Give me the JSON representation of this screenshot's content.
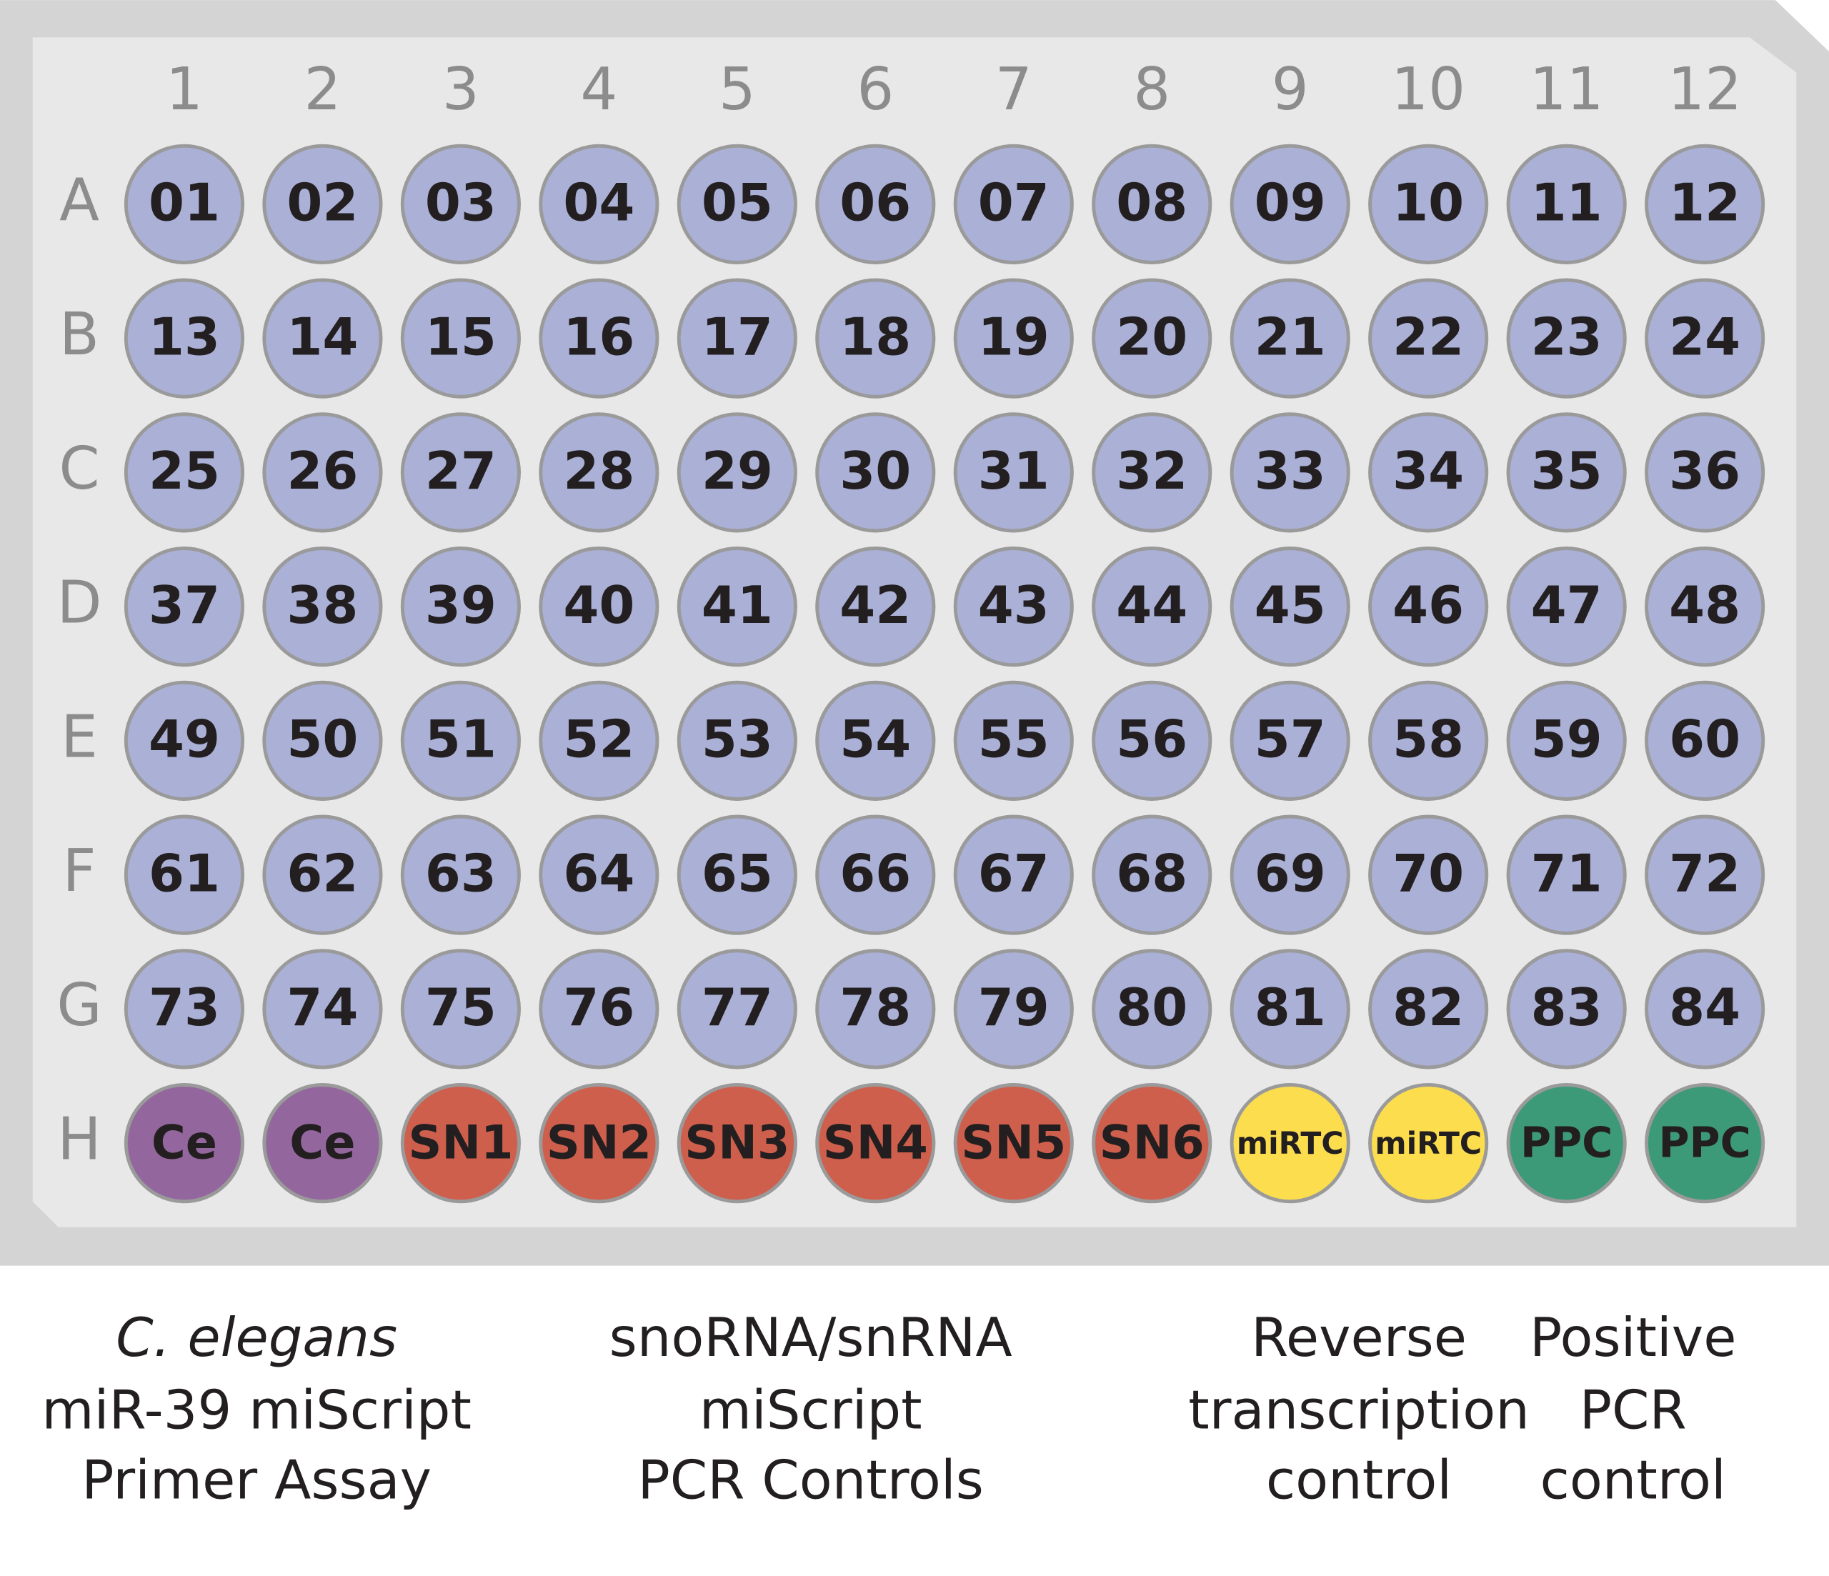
{
  "plate": {
    "columns": [
      "1",
      "2",
      "3",
      "4",
      "5",
      "6",
      "7",
      "8",
      "9",
      "10",
      "11",
      "12"
    ],
    "rows": [
      "A",
      "B",
      "C",
      "D",
      "E",
      "F",
      "G",
      "H"
    ],
    "wells": [
      [
        "01",
        "02",
        "03",
        "04",
        "05",
        "06",
        "07",
        "08",
        "09",
        "10",
        "11",
        "12"
      ],
      [
        "13",
        "14",
        "15",
        "16",
        "17",
        "18",
        "19",
        "20",
        "21",
        "22",
        "23",
        "24"
      ],
      [
        "25",
        "26",
        "27",
        "28",
        "29",
        "30",
        "31",
        "32",
        "33",
        "34",
        "35",
        "36"
      ],
      [
        "37",
        "38",
        "39",
        "40",
        "41",
        "42",
        "43",
        "44",
        "45",
        "46",
        "47",
        "48"
      ],
      [
        "49",
        "50",
        "51",
        "52",
        "53",
        "54",
        "55",
        "56",
        "57",
        "58",
        "59",
        "60"
      ],
      [
        "61",
        "62",
        "63",
        "64",
        "65",
        "66",
        "67",
        "68",
        "69",
        "70",
        "71",
        "72"
      ],
      [
        "73",
        "74",
        "75",
        "76",
        "77",
        "78",
        "79",
        "80",
        "81",
        "82",
        "83",
        "84"
      ],
      [
        "Ce",
        "Ce",
        "SN1",
        "SN2",
        "SN3",
        "SN4",
        "SN5",
        "SN6",
        "miRTC",
        "miRTC",
        "PPC",
        "PPC"
      ]
    ]
  },
  "legend": [
    {
      "lines": [
        "C. elegans",
        "miR-39 miScript",
        "Primer Assay"
      ]
    },
    {
      "lines": [
        "snoRNA/snRNA",
        "miScript",
        "PCR Controls"
      ]
    },
    {
      "lines": [
        "Reverse",
        "transcription",
        "control"
      ]
    },
    {
      "lines": [
        "Positive",
        "PCR",
        "control"
      ]
    }
  ]
}
